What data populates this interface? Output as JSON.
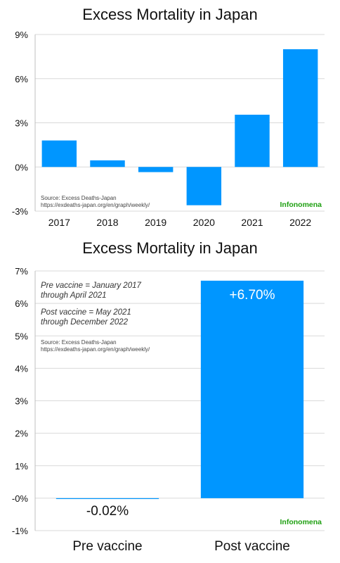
{
  "chart_data": [
    {
      "type": "bar",
      "title": "Excess Mortality in Japan",
      "categories": [
        "2017",
        "2018",
        "2019",
        "2020",
        "2021",
        "2022"
      ],
      "values": [
        1.8,
        0.45,
        -0.35,
        -2.6,
        3.55,
        8.0
      ],
      "ylim": [
        -3,
        9
      ],
      "yticks": [
        -3,
        0,
        3,
        6,
        9
      ],
      "ytick_labels": [
        "-3%",
        "0%",
        "3%",
        "6%",
        "9%"
      ],
      "grid": true,
      "bar_color": "#0096FF",
      "source_line1": "Source: Excess Deaths-Japan",
      "source_line2": "https://exdeaths-japan.org/en/graph/weekly/",
      "brand": "Infonomena",
      "brand_color": "#1FA012"
    },
    {
      "type": "bar",
      "title": "Excess Mortality in Japan",
      "categories": [
        "Pre vaccine",
        "Post vaccine"
      ],
      "values": [
        -0.02,
        6.7
      ],
      "value_labels": [
        "-0.02%",
        "+6.70%"
      ],
      "ylim": [
        -1,
        7
      ],
      "yticks": [
        -1,
        0,
        1,
        2,
        3,
        4,
        5,
        6,
        7
      ],
      "ytick_labels": [
        "-1%",
        "-0%",
        "1%",
        "2%",
        "3%",
        "4%",
        "5%",
        "6%",
        "7%"
      ],
      "grid": true,
      "bar_color": "#0096FF",
      "note_pre_line1": "Pre vaccine = January 2017",
      "note_pre_line2": "through April 2021",
      "note_post_line1": "Post vaccine = May 2021",
      "note_post_line2": "through December 2022",
      "source_line1": "Source: Excess Deaths-Japan",
      "source_line2": "https://exdeaths-japan.org/en/graph/weekly/",
      "brand": "Infonomena",
      "brand_color": "#1FA012"
    }
  ]
}
